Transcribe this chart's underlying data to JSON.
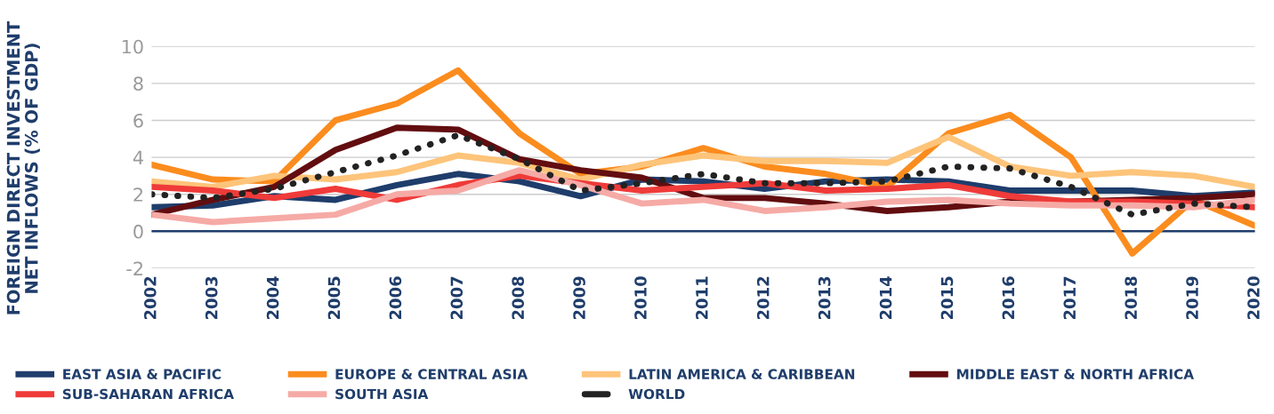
{
  "chart_data": {
    "type": "line",
    "ylabel": "FOREIGN DIRECT INVESTMENT\nNET INFLOWS (% OF GDP)",
    "categories": [
      "2002",
      "2003",
      "2004",
      "2005",
      "2006",
      "2007",
      "2008",
      "2009",
      "2010",
      "2011",
      "2012",
      "2013",
      "2014",
      "2015",
      "2016",
      "2017",
      "2018",
      "2019",
      "2020"
    ],
    "series": [
      {
        "name": "EAST ASIA & PACIFIC",
        "color": "#1f3d6b",
        "values": [
          1.3,
          1.4,
          1.9,
          1.7,
          2.5,
          3.1,
          2.7,
          1.9,
          2.8,
          2.7,
          2.3,
          2.7,
          2.8,
          2.7,
          2.2,
          2.2,
          2.2,
          1.9,
          2.1
        ]
      },
      {
        "name": "EUROPE & CENTRAL ASIA",
        "color": "#fb8c1e",
        "values": [
          3.6,
          2.8,
          2.7,
          6.0,
          6.9,
          8.7,
          5.3,
          3.1,
          3.5,
          4.5,
          3.5,
          3.1,
          2.4,
          5.3,
          6.3,
          4.0,
          -1.2,
          1.7,
          0.3
        ]
      },
      {
        "name": "LATIN AMERICA & CARIBBEAN",
        "color": "#fdc47a",
        "values": [
          2.7,
          2.4,
          3.0,
          2.8,
          3.2,
          4.1,
          3.7,
          2.8,
          3.6,
          4.1,
          3.8,
          3.8,
          3.7,
          5.1,
          3.5,
          3.0,
          3.2,
          3.0,
          2.4
        ]
      },
      {
        "name": "MIDDLE EAST & NORTH AFRICA",
        "color": "#620d10",
        "values": [
          0.9,
          1.7,
          2.4,
          4.4,
          5.6,
          5.5,
          3.9,
          3.3,
          2.9,
          1.8,
          1.8,
          1.5,
          1.1,
          1.3,
          1.6,
          1.6,
          1.7,
          1.8,
          2.0
        ]
      },
      {
        "name": "SUB-SAHARAN AFRICA",
        "color": "#ef3b39",
        "values": [
          2.4,
          2.2,
          1.8,
          2.3,
          1.7,
          2.5,
          3.0,
          2.6,
          2.2,
          2.4,
          2.6,
          2.2,
          2.3,
          2.5,
          1.9,
          1.6,
          1.6,
          1.5,
          1.3
        ]
      },
      {
        "name": "SOUTH ASIA",
        "color": "#f6aaa6",
        "values": [
          0.9,
          0.5,
          0.7,
          0.9,
          2.0,
          2.2,
          3.3,
          2.5,
          1.5,
          1.7,
          1.1,
          1.3,
          1.6,
          1.7,
          1.5,
          1.4,
          1.4,
          1.3,
          1.7
        ]
      },
      {
        "name": "WORLD",
        "color": "#222222",
        "line_style": "dotted",
        "values": [
          2.0,
          1.8,
          2.3,
          3.2,
          4.1,
          5.2,
          3.9,
          2.2,
          2.6,
          3.1,
          2.6,
          2.6,
          2.7,
          3.5,
          3.4,
          2.4,
          0.9,
          1.5,
          1.3
        ]
      }
    ],
    "ylim": [
      -2,
      10
    ],
    "yticks": [
      -2,
      0,
      2,
      4,
      6,
      8,
      10
    ],
    "grid": "y",
    "legend": "bottom",
    "ref_lines": [
      {
        "axis": "y",
        "value": 0,
        "label": null,
        "color": "#1f3d6b"
      }
    ]
  }
}
